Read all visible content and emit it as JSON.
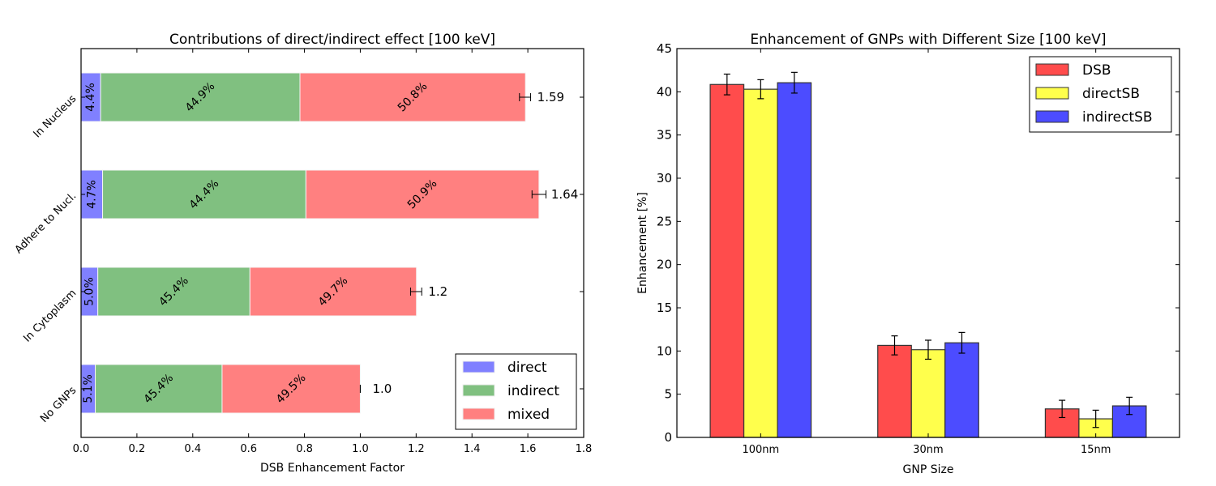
{
  "chart_data": [
    {
      "type": "bar",
      "orientation": "horizontal",
      "stacked": true,
      "title": "Contributions of direct/indirect effect [100 keV]",
      "xlabel": "DSB Enhancement Factor",
      "ylabel": "",
      "xlim": [
        0,
        1.8
      ],
      "xticks": [
        "0.0",
        "0.2",
        "0.4",
        "0.6",
        "0.8",
        "1.0",
        "1.2",
        "1.4",
        "1.6",
        "1.8"
      ],
      "categories": [
        "No GNPs",
        "In Cytoplasm",
        "Adhere to Nucl.",
        "In Nucleus"
      ],
      "totals": [
        1.0,
        1.2,
        1.64,
        1.59
      ],
      "total_labels": [
        "1.0",
        "1.2",
        "1.64",
        "1.59"
      ],
      "total_errors": [
        0.0,
        0.02,
        0.025,
        0.02
      ],
      "series": [
        {
          "name": "direct",
          "color": "#8080ff",
          "fractions": [
            0.051,
            0.05,
            0.047,
            0.044
          ],
          "labels": [
            "5.1%",
            "5.0%",
            "4.7%",
            "4.4%"
          ]
        },
        {
          "name": "indirect",
          "color": "#80c080",
          "fractions": [
            0.454,
            0.454,
            0.444,
            0.449
          ],
          "labels": [
            "45.4%",
            "45.4%",
            "44.4%",
            "44.9%"
          ]
        },
        {
          "name": "mixed",
          "color": "#ff8080",
          "fractions": [
            0.495,
            0.497,
            0.509,
            0.508
          ],
          "labels": [
            "49.5%",
            "49.7%",
            "50.9%",
            "50.8%"
          ]
        }
      ],
      "legend": {
        "position": "lower-right",
        "entries": [
          "direct",
          "indirect",
          "mixed"
        ]
      },
      "grid": false
    },
    {
      "type": "bar",
      "orientation": "vertical",
      "stacked": false,
      "title": "Enhancement of GNPs with Different Size [100 keV]",
      "xlabel": "GNP Size",
      "ylabel": "Enhancement [%]",
      "ylim": [
        0,
        45
      ],
      "yticks": [
        "0",
        "5",
        "10",
        "15",
        "20",
        "25",
        "30",
        "35",
        "40",
        "45"
      ],
      "categories": [
        "100nm",
        "30nm",
        "15nm"
      ],
      "series": [
        {
          "name": "DSB",
          "color": "#ff4c4c",
          "values": [
            40.85,
            10.65,
            3.3
          ],
          "errors": [
            1.2,
            1.1,
            1.0
          ]
        },
        {
          "name": "directSB",
          "color": "#ffff4c",
          "values": [
            40.3,
            10.15,
            2.15
          ],
          "errors": [
            1.1,
            1.1,
            1.0
          ]
        },
        {
          "name": "indirectSB",
          "color": "#4c4cff",
          "values": [
            41.05,
            10.95,
            3.65
          ],
          "errors": [
            1.2,
            1.2,
            1.0
          ]
        }
      ],
      "legend": {
        "position": "top-right",
        "entries": [
          "DSB",
          "directSB",
          "indirectSB"
        ]
      },
      "grid": false
    }
  ]
}
